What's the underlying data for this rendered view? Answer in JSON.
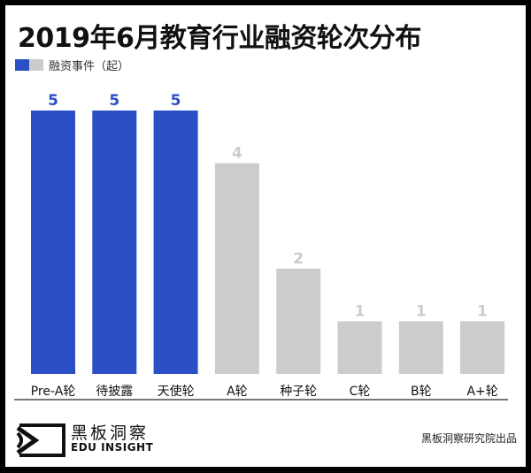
{
  "chart_data": {
    "type": "bar",
    "title": "2019年6月教育行业融资轮次分布",
    "legend": {
      "label": "融资事件（起）",
      "placement": "top-left"
    },
    "categories": [
      "Pre-A轮",
      "待披露",
      "天使轮",
      "A轮",
      "种子轮",
      "C轮",
      "B轮",
      "A+轮"
    ],
    "values": [
      5,
      5,
      5,
      4,
      2,
      1,
      1,
      1
    ],
    "highlight_colors": [
      "#2b4fc4",
      "#2b4fc4",
      "#2b4fc4",
      "#cccccc",
      "#cccccc",
      "#cccccc",
      "#cccccc",
      "#cccccc"
    ],
    "label_colors": [
      "#2b4fc4",
      "#2b4fc4",
      "#2b4fc4",
      "#cccccc",
      "#cccccc",
      "#cccccc",
      "#cccccc",
      "#cccccc"
    ],
    "ylim": [
      0,
      5
    ],
    "grid": false,
    "xlabel": "",
    "ylabel": ""
  },
  "colors": {
    "accent": "#2b4fc4",
    "muted": "#cccccc"
  },
  "footer": {
    "logo_cn": "黑板洞察",
    "logo_en": "EDU INSIGHT",
    "credit": "黑板洞察研究院出品"
  }
}
